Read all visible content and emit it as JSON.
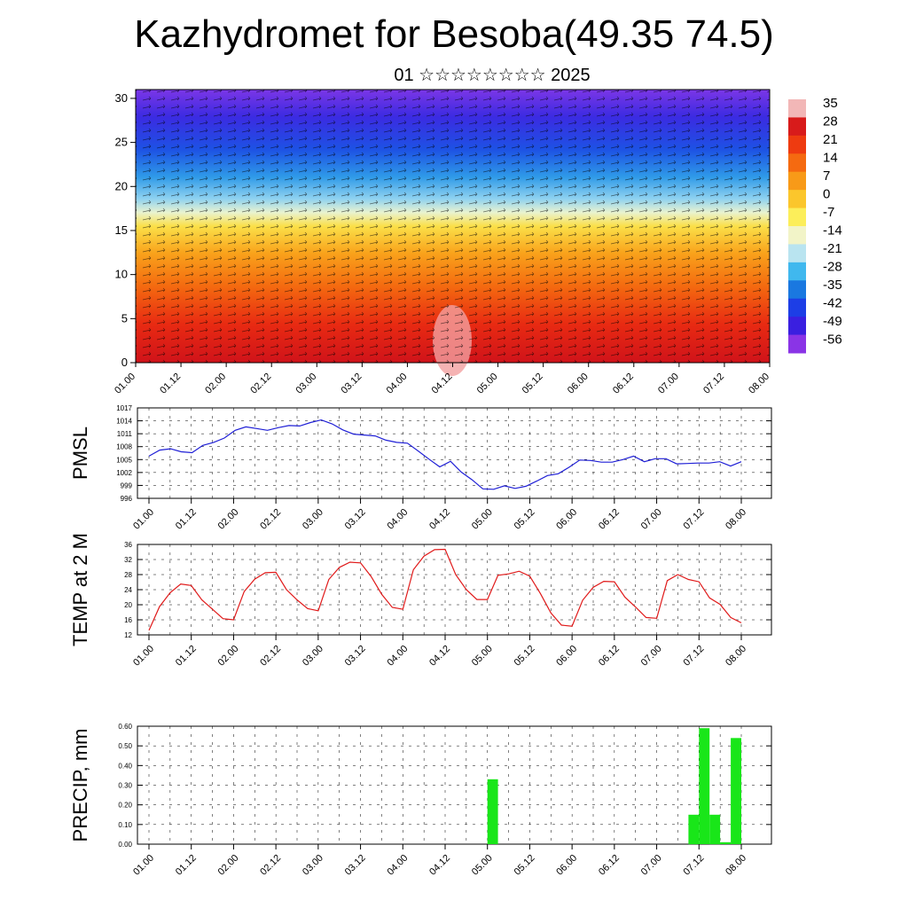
{
  "title": "Kazhydromet for Besoba(49.35 74.5)",
  "subtitle": "01 ☆☆☆☆☆☆☆☆ 2025",
  "time_labels": [
    "01.00",
    "01.12",
    "02.00",
    "02.12",
    "03.00",
    "03.12",
    "04.00",
    "04.12",
    "05.00",
    "05.12",
    "06.00",
    "06.12",
    "07.00",
    "07.12",
    "08.00"
  ],
  "chart_data": [
    {
      "type": "heatmap",
      "name": "temperature-wind-section",
      "y_ticks": [
        0,
        5,
        10,
        15,
        20,
        25,
        30
      ],
      "ylim": [
        0,
        31
      ],
      "colorbar_labels": [
        "35",
        "28",
        "21",
        "14",
        "7",
        "0",
        "-7",
        "-14",
        "-21",
        "-28",
        "-35",
        "-42",
        "-49",
        "-56"
      ],
      "colorbar_colors": [
        "#f2b7b7",
        "#d81b1b",
        "#ee3b10",
        "#f56a10",
        "#f89a18",
        "#fbc62c",
        "#fcee5a",
        "#f2f4c8",
        "#b9e4f0",
        "#40b8ee",
        "#1a78e0",
        "#1d3ee6",
        "#3a1fe0",
        "#8a34e6"
      ]
    },
    {
      "type": "line",
      "name": "PMSL",
      "ylabel": "PMSL",
      "ylim": [
        996,
        1017
      ],
      "y_ticks": [
        996,
        999,
        1002,
        1005,
        1008,
        1011,
        1014,
        1017
      ],
      "color": "#1f1fd6",
      "values": [
        1005.8,
        1007.2,
        1007.5,
        1006.8,
        1006.6,
        1008.3,
        1009.0,
        1010.0,
        1011.8,
        1012.6,
        1012.2,
        1011.8,
        1012.4,
        1012.9,
        1012.8,
        1013.6,
        1014.2,
        1013.3,
        1011.9,
        1010.9,
        1010.7,
        1010.5,
        1009.5,
        1009.0,
        1008.8,
        1007.0,
        1005.1,
        1003.3,
        1004.6,
        1002.1,
        1000.3,
        998.2,
        998.1,
        998.9,
        998.3,
        998.8,
        1000.0,
        1001.3,
        1001.7,
        1003.2,
        1004.9,
        1004.8,
        1004.4,
        1004.4,
        1005.0,
        1005.8,
        1004.5,
        1005.2,
        1005.2,
        1004.0,
        1004.1,
        1004.2,
        1004.2,
        1004.5,
        1003.5,
        1004.5
      ]
    },
    {
      "type": "line",
      "name": "TEMP at 2 M",
      "ylabel": "TEMP at 2 M",
      "ylim": [
        12,
        36
      ],
      "y_ticks": [
        12,
        16,
        20,
        24,
        28,
        32,
        36
      ],
      "color": "#e01a1a",
      "values": [
        13.2,
        19.5,
        23.2,
        25.5,
        25.1,
        21.3,
        18.8,
        16.3,
        16.0,
        23.5,
        26.8,
        28.5,
        28.6,
        24.0,
        21.3,
        19.0,
        18.4,
        26.7,
        29.9,
        31.3,
        31.1,
        27.5,
        22.8,
        19.3,
        18.8,
        29.3,
        32.9,
        34.6,
        34.7,
        28.0,
        24.0,
        21.4,
        21.4,
        27.8,
        28.2,
        28.9,
        27.6,
        23.0,
        17.8,
        14.6,
        14.3,
        21.2,
        24.6,
        26.2,
        26.1,
        22.0,
        19.4,
        16.6,
        16.4,
        26.4,
        28.0,
        26.7,
        26.1,
        21.8,
        20.1,
        16.6,
        15.2
      ]
    },
    {
      "type": "bar",
      "name": "PRECIP, mm",
      "ylabel": "PRECIP, mm",
      "ylim": [
        0,
        0.6
      ],
      "y_ticks": [
        "0.00",
        "0.10",
        "0.20",
        "0.30",
        "0.40",
        "0.50",
        "0.60"
      ],
      "color": "#19e619",
      "bars": [
        {
          "index": 32,
          "value": 0.33
        },
        {
          "index": 51,
          "value": 0.15
        },
        {
          "index": 52,
          "value": 0.59
        },
        {
          "index": 53,
          "value": 0.15
        },
        {
          "index": 54,
          "value": 0.01
        },
        {
          "index": 55,
          "value": 0.54
        }
      ]
    }
  ]
}
